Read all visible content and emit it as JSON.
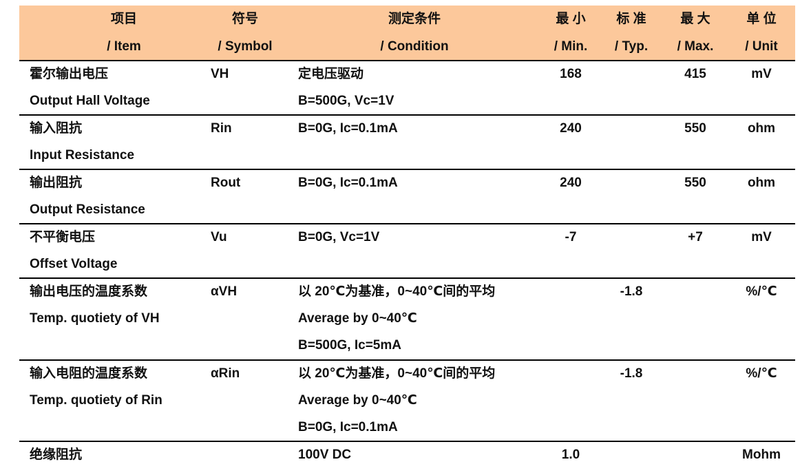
{
  "table": {
    "header": [
      {
        "zh": "项目",
        "en": "/ Item"
      },
      {
        "zh": "符号",
        "en": "/ Symbol"
      },
      {
        "zh": "测定条件",
        "en": "/ Condition"
      },
      {
        "zh": "最 小",
        "en": "/ Min."
      },
      {
        "zh": "标 准",
        "en": "/ Typ."
      },
      {
        "zh": "最 大",
        "en": "/ Max."
      },
      {
        "zh": "单 位",
        "en": "/ Unit"
      }
    ],
    "rows": [
      {
        "item": [
          "霍尔输出电压",
          "Output Hall Voltage"
        ],
        "symbol": "VH",
        "condition": [
          "定电压驱动",
          "B=500G, Vc=1V"
        ],
        "min": "168",
        "typ": null,
        "max": "415",
        "unit": "mV"
      },
      {
        "item": [
          "输入阻抗",
          "Input Resistance"
        ],
        "symbol": "Rin",
        "condition": [
          "B=0G, Ic=0.1mA"
        ],
        "min": "240",
        "typ": null,
        "max": "550",
        "unit": "ohm"
      },
      {
        "item": [
          "输出阻抗",
          "Output Resistance"
        ],
        "symbol": "Rout",
        "condition": [
          "B=0G, Ic=0.1mA"
        ],
        "min": "240",
        "typ": null,
        "max": "550",
        "unit": "ohm"
      },
      {
        "item": [
          "不平衡电压",
          "Offset Voltage"
        ],
        "symbol": "Vu",
        "condition": [
          "B=0G, Vc=1V"
        ],
        "min": "-7",
        "typ": null,
        "max": "+7",
        "unit": "mV"
      },
      {
        "item": [
          "输出电压的温度系数",
          "Temp. quotiety of VH"
        ],
        "symbol": "αVH",
        "condition": [
          "以 20℃为基准，0~40℃间的平均",
          "Average by 0~40℃",
          "B=500G, Ic=5mA"
        ],
        "min": null,
        "typ": "-1.8",
        "max": null,
        "unit": "%/℃"
      },
      {
        "item": [
          "输入电阻的温度系数",
          "Temp. quotiety of Rin"
        ],
        "symbol": "αRin",
        "condition": [
          "以 20℃为基准，0~40℃间的平均",
          "Average by 0~40℃",
          "B=0G, Ic=0.1mA"
        ],
        "min": null,
        "typ": "-1.8",
        "max": null,
        "unit": "%/℃"
      },
      {
        "item": [
          "绝缘阻抗"
        ],
        "symbol": null,
        "condition": [
          "100V DC"
        ],
        "min": "1.0",
        "typ": null,
        "max": null,
        "unit": "Mohm"
      }
    ]
  }
}
